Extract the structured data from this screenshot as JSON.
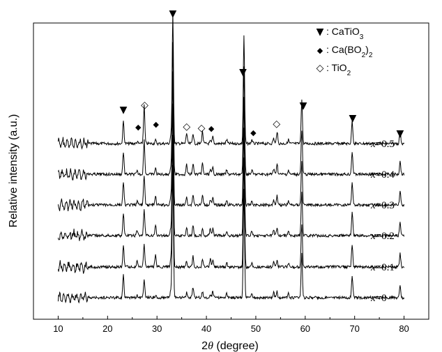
{
  "chart_data": {
    "type": "line",
    "xlabel_parts": [
      "2",
      "θ",
      " (degree)"
    ],
    "ylabel": "Relative intensity (a.u.)",
    "xlim": [
      5,
      85
    ],
    "x_ticks": [
      10,
      20,
      30,
      40,
      50,
      60,
      70,
      80
    ],
    "y_ticks_shown": false,
    "grid": false,
    "series": [
      {
        "name": "x=0.5",
        "label_main": "x",
        "label_rest": "=0.5"
      },
      {
        "name": "x=0.4",
        "label_main": "x",
        "label_rest": "=0.4"
      },
      {
        "name": "x=0.3",
        "label_main": "x",
        "label_rest": "=0.3"
      },
      {
        "name": "x=0.2",
        "label_main": "x",
        "label_rest": "=0.2"
      },
      {
        "name": "x=0.1",
        "label_main": "x",
        "label_rest": "=0.1"
      },
      {
        "name": "x=0",
        "label_main": "x",
        "label_rest": "=0"
      }
    ],
    "peaks": [
      {
        "x": 23.2,
        "h": 0.17
      },
      {
        "x": 26.0,
        "h": 0.05,
        "phase": "CaB2O4"
      },
      {
        "x": 27.4,
        "h": 0.25,
        "phase": "TiO2"
      },
      {
        "x": 29.7,
        "h": 0.1,
        "phase": "CaB2O4"
      },
      {
        "x": 32.8,
        "h": 0.06
      },
      {
        "x": 33.2,
        "h": 1.0
      },
      {
        "x": 36.0,
        "h": 0.07,
        "phase": "TiO2"
      },
      {
        "x": 37.3,
        "h": 0.08
      },
      {
        "x": 39.2,
        "h": 0.08,
        "phase": "TiO2"
      },
      {
        "x": 40.8,
        "h": 0.07,
        "phase": "CaB2O4"
      },
      {
        "x": 41.3,
        "h": 0.05
      },
      {
        "x": 44.1,
        "h": 0.03
      },
      {
        "x": 47.6,
        "h": 0.82
      },
      {
        "x": 49.2,
        "h": 0.03
      },
      {
        "x": 53.6,
        "h": 0.04
      },
      {
        "x": 54.3,
        "h": 0.08,
        "phase": "TiO2"
      },
      {
        "x": 56.6,
        "h": 0.03
      },
      {
        "x": 59.3,
        "h": 0.33
      },
      {
        "x": 69.5,
        "h": 0.17
      },
      {
        "x": 79.2,
        "h": 0.1
      }
    ],
    "legend": [
      {
        "symbol": "▼",
        "text": "CaTiO",
        "sub": "3",
        "after": ""
      },
      {
        "symbol": "◆",
        "text": "Ca(BO",
        "sub": "2",
        "after": ")",
        "sub2": "2"
      },
      {
        "symbol": "◇",
        "text": " TiO",
        "sub": "2",
        "after": ""
      }
    ],
    "annotations": [
      {
        "symbol": "▼",
        "x": 23.2
      },
      {
        "symbol": "◆",
        "x": 26.2
      },
      {
        "symbol": "◇",
        "x": 27.5
      },
      {
        "symbol": "◆",
        "x": 29.8
      },
      {
        "symbol": "▼",
        "x": 33.2
      },
      {
        "symbol": "◇",
        "x": 36.0
      },
      {
        "symbol": "◇",
        "x": 39.0
      },
      {
        "symbol": "◆",
        "x": 41.0
      },
      {
        "symbol": "▼",
        "x": 47.4
      },
      {
        "symbol": "◆",
        "x": 49.5
      },
      {
        "symbol": "◇",
        "x": 54.2
      },
      {
        "symbol": "▼",
        "x": 59.6
      },
      {
        "symbol": "▼",
        "x": 69.6
      },
      {
        "symbol": "▼",
        "x": 79.2
      }
    ]
  }
}
